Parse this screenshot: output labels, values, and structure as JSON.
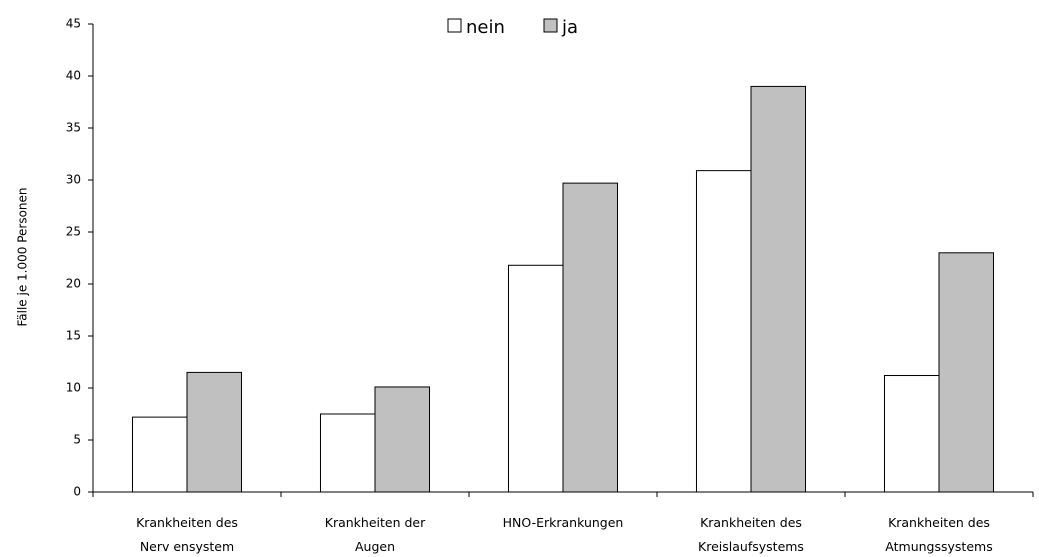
{
  "chart_data": {
    "type": "bar",
    "ylabel": "Fälle je 1.000 Personen",
    "xlabel": "",
    "ylim": [
      0,
      45
    ],
    "yticks": [
      0,
      5,
      10,
      15,
      20,
      25,
      30,
      35,
      40,
      45
    ],
    "grid": false,
    "legend_position": "top-center",
    "categories": [
      [
        "Krankheiten des",
        "Nerv ensystem"
      ],
      [
        "Krankheiten der",
        "Augen"
      ],
      [
        "HNO-Erkrankungen"
      ],
      [
        "Krankheiten des",
        "Kreislaufsystems"
      ],
      [
        "Krankheiten des",
        "Atmungssystems"
      ]
    ],
    "series": [
      {
        "name": "nein",
        "color": "#ffffff",
        "values": [
          7.2,
          7.5,
          21.8,
          30.9,
          11.2
        ]
      },
      {
        "name": "ja",
        "color": "#c0c0c0",
        "values": [
          11.5,
          10.1,
          29.7,
          39.0,
          23.0
        ]
      }
    ]
  }
}
